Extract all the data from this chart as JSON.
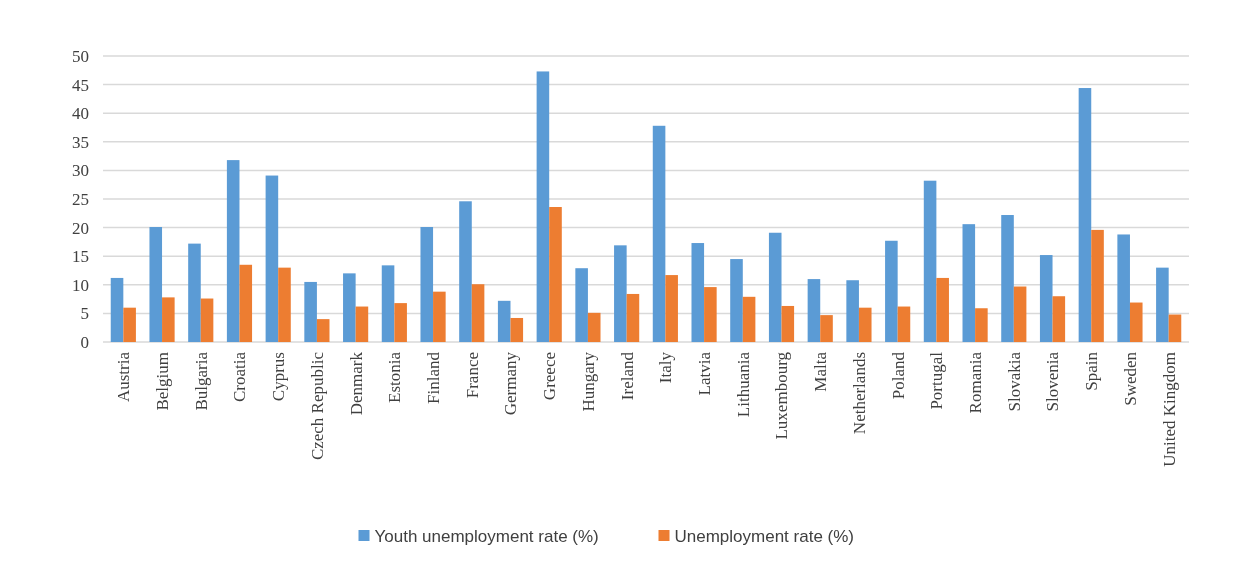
{
  "chart_data": {
    "type": "bar",
    "categories": [
      "Austria",
      "Belgium",
      "Bulgaria",
      "Croatia",
      "Cyprus",
      "Czech Republic",
      "Denmark",
      "Estonia",
      "Finland",
      "France",
      "Germany",
      "Greece",
      "Hungary",
      "Ireland",
      "Italy",
      "Latvia",
      "Lithuania",
      "Luxembourg",
      "Malta",
      "Netherlands",
      "Poland",
      "Portugal",
      "Romania",
      "Slovakia",
      "Slovenia",
      "Spain",
      "Sweden",
      "United Kingdom"
    ],
    "series": [
      {
        "name": "Youth unemployment rate (%)",
        "color": "#5b9bd5",
        "values": [
          11.2,
          20.1,
          17.2,
          31.8,
          29.1,
          10.5,
          12.0,
          13.4,
          20.1,
          24.6,
          7.2,
          47.3,
          12.9,
          16.9,
          37.8,
          17.3,
          14.5,
          19.1,
          11.0,
          10.8,
          17.7,
          28.2,
          20.6,
          22.2,
          15.2,
          44.4,
          18.8,
          13.0
        ]
      },
      {
        "name": "Unemployment rate (%)",
        "color": "#ed7d31",
        "values": [
          6.0,
          7.8,
          7.6,
          13.5,
          13.0,
          4.0,
          6.2,
          6.8,
          8.8,
          10.1,
          4.2,
          23.6,
          5.1,
          8.4,
          11.7,
          9.6,
          7.9,
          6.3,
          4.7,
          6.0,
          6.2,
          11.2,
          5.9,
          9.7,
          8.0,
          19.6,
          6.9,
          4.8
        ]
      }
    ],
    "ylim": [
      0,
      50
    ],
    "yticks": [
      0,
      5,
      10,
      15,
      20,
      25,
      30,
      35,
      40,
      45,
      50
    ],
    "grid": "y",
    "legend": "bottom"
  }
}
